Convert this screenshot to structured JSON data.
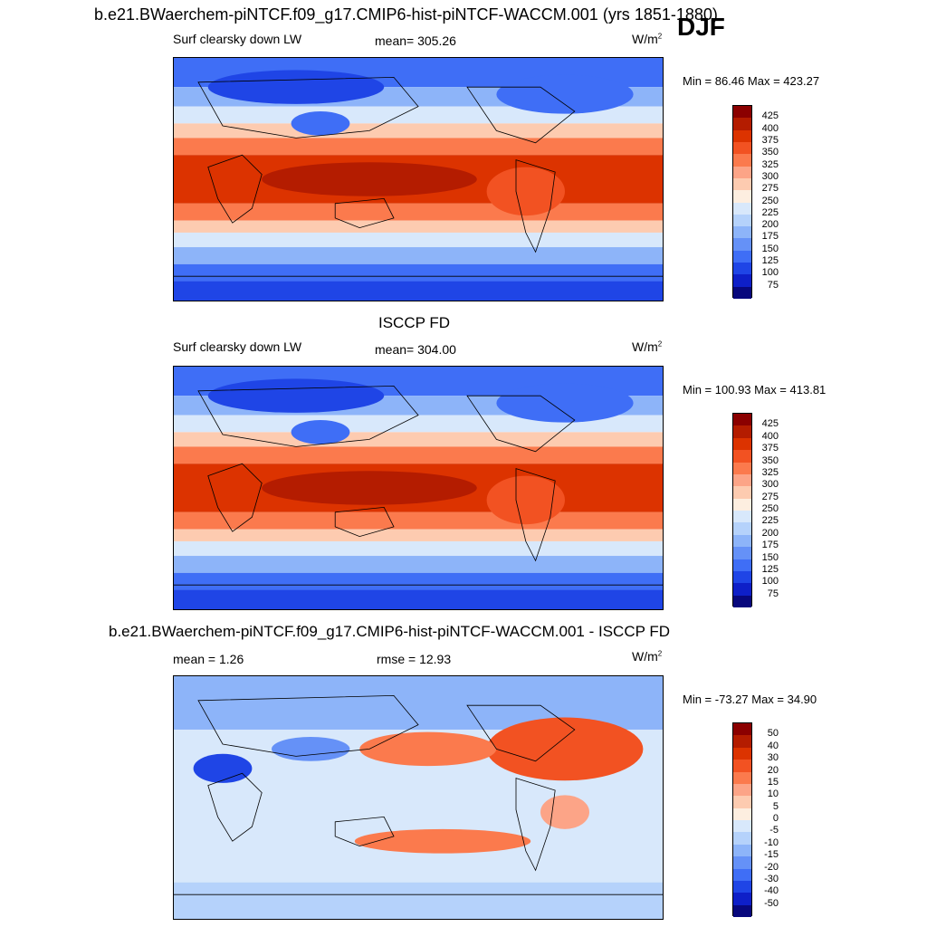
{
  "header": {
    "title": "b.e21.BWaerchem-piNTCF.f09_g17.CMIP6-hist-piNTCF-WACCM.001 (yrs 1851-1880)",
    "season": "DJF"
  },
  "panels": [
    {
      "id": "model",
      "variable": "Surf clearsky down LW",
      "stat": "mean= 305.26",
      "units_base": "W/m",
      "units_exp": "2",
      "minmax": "Min =  86.46 Max = 423.27",
      "colorbar_levels": [
        "425",
        "400",
        "375",
        "350",
        "325",
        "300",
        "275",
        "250",
        "225",
        "200",
        "175",
        "150",
        "125",
        "100",
        "75"
      ],
      "colors": [
        "#8b0000",
        "#b41c00",
        "#dc3300",
        "#f25222",
        "#fb7a4d",
        "#fca487",
        "#fdcbb0",
        "#fdeee0",
        "#d8e8fb",
        "#b5d2fb",
        "#8db4f9",
        "#6591f7",
        "#3f6ef6",
        "#1f45e6",
        "#0e1fc8",
        "#08087d"
      ]
    },
    {
      "id": "obs",
      "title": "ISCCP FD",
      "variable": "Surf clearsky down LW",
      "stat": "mean= 304.00",
      "units_base": "W/m",
      "units_exp": "2",
      "minmax": "Min = 100.93 Max = 413.81",
      "colorbar_levels": [
        "425",
        "400",
        "375",
        "350",
        "325",
        "300",
        "275",
        "250",
        "225",
        "200",
        "175",
        "150",
        "125",
        "100",
        "75"
      ],
      "colors": [
        "#8b0000",
        "#b41c00",
        "#dc3300",
        "#f25222",
        "#fb7a4d",
        "#fca487",
        "#fdcbb0",
        "#fdeee0",
        "#d8e8fb",
        "#b5d2fb",
        "#8db4f9",
        "#6591f7",
        "#3f6ef6",
        "#1f45e6",
        "#0e1fc8",
        "#08087d"
      ]
    },
    {
      "id": "diff",
      "title": "b.e21.BWaerchem-piNTCF.f09_g17.CMIP6-hist-piNTCF-WACCM.001 - ISCCP FD",
      "stat": "mean =   1.26",
      "rmse": "rmse =  12.93",
      "units_base": "W/m",
      "units_exp": "2",
      "minmax": "Min = -73.27 Max =  34.90",
      "colorbar_levels": [
        "50",
        "40",
        "30",
        "20",
        "15",
        "10",
        "5",
        "0",
        "-5",
        "-10",
        "-15",
        "-20",
        "-30",
        "-40",
        "-50"
      ],
      "colors": [
        "#8b0000",
        "#b41c00",
        "#dc3300",
        "#f25222",
        "#fb7a4d",
        "#fca487",
        "#fdcbb0",
        "#fdeee0",
        "#d8e8fb",
        "#b5d2fb",
        "#8db4f9",
        "#6591f7",
        "#3f6ef6",
        "#1f45e6",
        "#0e1fc8",
        "#08087d"
      ]
    }
  ]
}
